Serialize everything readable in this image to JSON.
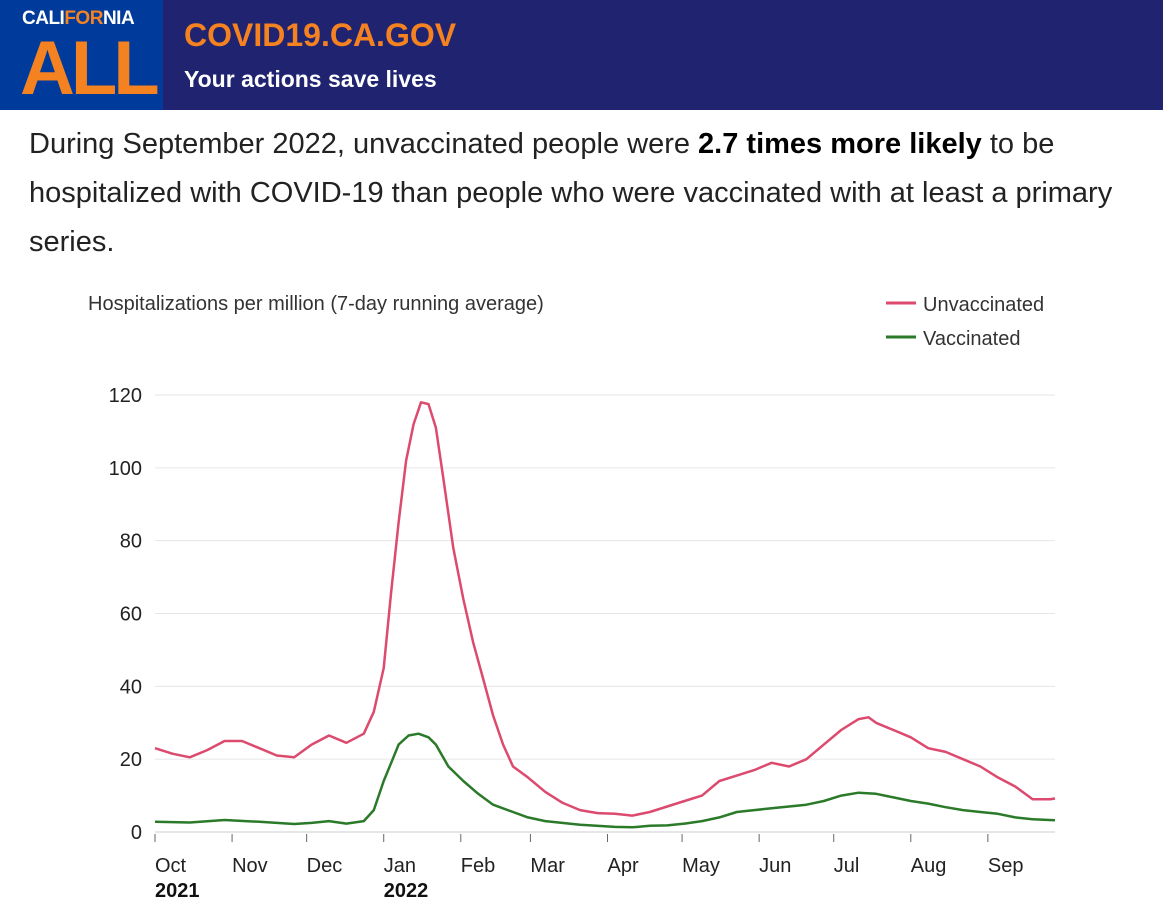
{
  "header": {
    "logo_top_pre": "CALI",
    "logo_top_for": "FOR",
    "logo_top_post": "NIA",
    "logo_big": "ALL",
    "site": "COVID19.CA.GOV",
    "tagline": "Your actions save lives"
  },
  "headline": {
    "pre": "During September 2022, unvaccinated people were ",
    "bold": "2.7 times more likely",
    "post": " to be hospitalized with COVID-19 than people who were vaccinated with at least a primary  series."
  },
  "chart_data": {
    "type": "line",
    "title": "Hospitalizations per million (7-day running average)",
    "x_unit": "days since 2021-10-01",
    "xlim": [
      0,
      362
    ],
    "ylim": [
      0,
      120
    ],
    "yticks": [
      0,
      20,
      40,
      60,
      80,
      100,
      120
    ],
    "grid": true,
    "legend_position": "top-right",
    "xticks": [
      {
        "day": 0,
        "label": "Oct",
        "year": "2021"
      },
      {
        "day": 31,
        "label": "Nov"
      },
      {
        "day": 61,
        "label": "Dec"
      },
      {
        "day": 92,
        "label": "Jan",
        "year": "2022"
      },
      {
        "day": 123,
        "label": "Feb"
      },
      {
        "day": 151,
        "label": "Mar"
      },
      {
        "day": 182,
        "label": "Apr"
      },
      {
        "day": 212,
        "label": "May"
      },
      {
        "day": 243,
        "label": "Jun"
      },
      {
        "day": 273,
        "label": "Jul"
      },
      {
        "day": 304,
        "label": "Aug"
      },
      {
        "day": 335,
        "label": "Sep"
      }
    ],
    "series": [
      {
        "name": "Unvaccinated",
        "color": "#dc4a6e",
        "x": [
          0,
          7,
          14,
          21,
          28,
          35,
          42,
          49,
          56,
          63,
          70,
          77,
          84,
          88,
          92,
          95,
          98,
          101,
          104,
          107,
          110,
          113,
          116,
          120,
          124,
          128,
          132,
          136,
          140,
          144,
          150,
          157,
          164,
          171,
          178,
          185,
          192,
          199,
          206,
          213,
          220,
          227,
          234,
          241,
          248,
          255,
          262,
          269,
          276,
          283,
          287,
          290,
          297,
          304,
          311,
          318,
          325,
          332,
          339,
          346,
          353,
          360,
          362
        ],
        "y": [
          23,
          21.5,
          20.5,
          22.5,
          25,
          25,
          23,
          21,
          20.5,
          24,
          26.5,
          24.5,
          27,
          33,
          45,
          66,
          85,
          102,
          112,
          118,
          117.5,
          111,
          97,
          78,
          64,
          52,
          42,
          32,
          24,
          18,
          15,
          11,
          8,
          6,
          5.2,
          5,
          4.5,
          5.5,
          7,
          8.5,
          10,
          14,
          15.5,
          17,
          19,
          18,
          20,
          24,
          28,
          31,
          31.5,
          30,
          28,
          26,
          23,
          22,
          20,
          18,
          15,
          12.5,
          9,
          9,
          9.2
        ]
      },
      {
        "name": "Vaccinated",
        "color": "#2a7a2a",
        "x": [
          0,
          14,
          28,
          42,
          56,
          63,
          70,
          77,
          84,
          88,
          92,
          95,
          98,
          102,
          106,
          110,
          113,
          118,
          124,
          130,
          136,
          144,
          150,
          157,
          171,
          185,
          192,
          199,
          206,
          213,
          220,
          227,
          234,
          241,
          248,
          255,
          262,
          269,
          276,
          283,
          290,
          297,
          304,
          311,
          318,
          325,
          332,
          339,
          346,
          353,
          362
        ],
        "y": [
          2.8,
          2.6,
          3.3,
          2.8,
          2.2,
          2.5,
          3,
          2.3,
          3,
          6,
          14,
          19,
          24,
          26.5,
          27,
          26,
          24,
          18,
          14,
          10.5,
          7.5,
          5.5,
          4,
          3,
          2,
          1.4,
          1.3,
          1.7,
          1.8,
          2.3,
          3,
          4,
          5.5,
          6,
          6.5,
          7,
          7.5,
          8.5,
          10,
          10.8,
          10.5,
          9.5,
          8.5,
          7.8,
          6.8,
          6,
          5.5,
          5,
          4,
          3.5,
          3.2
        ]
      }
    ]
  }
}
